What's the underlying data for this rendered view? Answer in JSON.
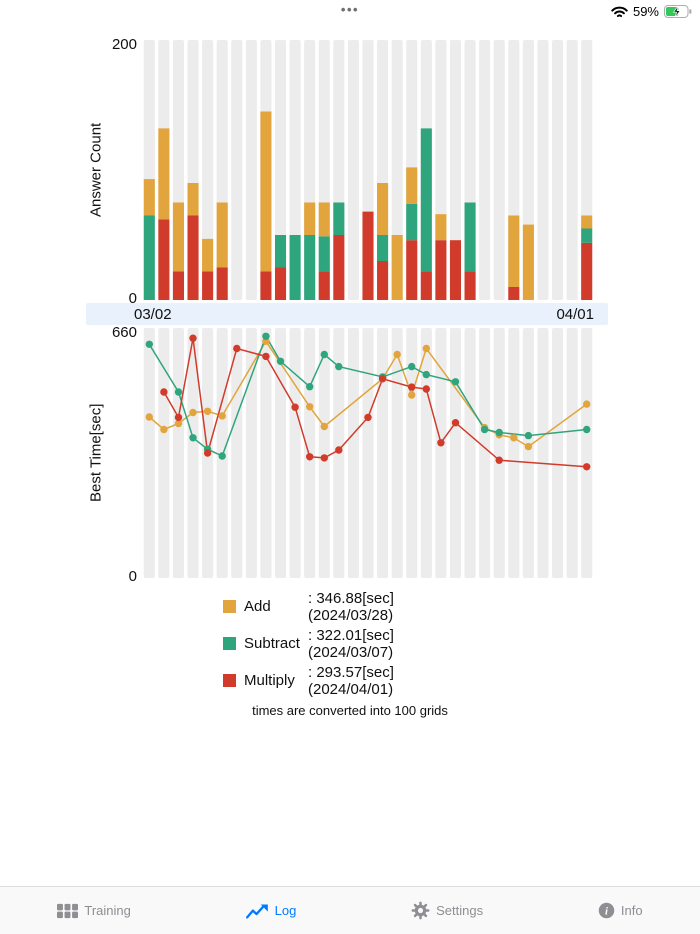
{
  "status_bar": {
    "window_controls": "•••",
    "battery_percent": "59%",
    "icons": [
      "wifi-icon",
      "battery-charging-icon"
    ]
  },
  "date_axis": {
    "start_label": "03/02",
    "end_label": "04/01"
  },
  "theme": {
    "add_color": "#E2A43C",
    "subtract_color": "#2FA57D",
    "multiply_color": "#D13B2B",
    "stripe_color": "#ECECEC",
    "date_strip_bg": "#E8F1FC",
    "active_tab_color": "#007AFF",
    "inactive_tab_color": "#8E8E93",
    "battery_fill": "#34C759"
  },
  "chart_data": [
    {
      "type": "stacked_bar",
      "ylabel": "Answer Count",
      "ylim": [
        0,
        200
      ],
      "ytick_labels": [
        "0",
        "200"
      ],
      "x_start_label": "03/02",
      "x_end_label": "04/01",
      "grid": "vertical-stripes",
      "stack_bottom_to_top": [
        "Multiply",
        "Subtract",
        "Add"
      ],
      "dates": [
        "03/02",
        "03/03",
        "03/04",
        "03/05",
        "03/06",
        "03/07",
        "03/08",
        "03/09",
        "03/10",
        "03/11",
        "03/12",
        "03/13",
        "03/14",
        "03/15",
        "03/16",
        "03/17",
        "03/18",
        "03/19",
        "03/20",
        "03/21",
        "03/22",
        "03/23",
        "03/24",
        "03/25",
        "03/26",
        "03/27",
        "03/28",
        "03/29",
        "03/30",
        "03/31",
        "04/01"
      ],
      "series": [
        {
          "name": "Multiply",
          "color": "#D13B2B",
          "values": [
            0,
            62,
            22,
            65,
            22,
            25,
            0,
            0,
            22,
            25,
            0,
            0,
            22,
            50,
            0,
            68,
            30,
            0,
            46,
            22,
            46,
            46,
            22,
            0,
            0,
            10,
            0,
            0,
            0,
            0,
            44
          ]
        },
        {
          "name": "Subtract",
          "color": "#2FA57D",
          "values": [
            65,
            0,
            0,
            0,
            0,
            0,
            0,
            0,
            0,
            25,
            50,
            50,
            27,
            25,
            0,
            0,
            20,
            0,
            28,
            110,
            0,
            0,
            53,
            0,
            0,
            0,
            0,
            0,
            0,
            0,
            11
          ]
        },
        {
          "name": "Add",
          "color": "#E2A43C",
          "values": [
            28,
            70,
            53,
            25,
            25,
            50,
            0,
            0,
            123,
            0,
            0,
            25,
            26,
            0,
            0,
            0,
            40,
            50,
            28,
            0,
            20,
            0,
            0,
            0,
            0,
            55,
            58,
            0,
            0,
            0,
            10
          ]
        }
      ]
    },
    {
      "type": "line",
      "ylabel": "Best Time[sec]",
      "ylim": [
        0,
        660
      ],
      "ytick_labels": [
        "0",
        "660"
      ],
      "grid": "vertical-stripes",
      "dates": [
        "03/02",
        "03/03",
        "03/04",
        "03/05",
        "03/06",
        "03/07",
        "03/08",
        "03/09",
        "03/10",
        "03/11",
        "03/12",
        "03/13",
        "03/14",
        "03/15",
        "03/16",
        "03/17",
        "03/18",
        "03/19",
        "03/20",
        "03/21",
        "03/22",
        "03/23",
        "03/24",
        "03/25",
        "03/26",
        "03/27",
        "03/28",
        "03/29",
        "03/30",
        "03/31",
        "04/01"
      ],
      "series": [
        {
          "name": "Add",
          "color": "#E2A43C",
          "points": [
            [
              "03/02",
              425
            ],
            [
              "03/03",
              392
            ],
            [
              "03/04",
              408
            ],
            [
              "03/05",
              437
            ],
            [
              "03/06",
              440
            ],
            [
              "03/07",
              428
            ],
            [
              "03/10",
              625
            ],
            [
              "03/13",
              452
            ],
            [
              "03/14",
              400
            ],
            [
              "03/18",
              526
            ],
            [
              "03/19",
              590
            ],
            [
              "03/20",
              483
            ],
            [
              "03/21",
              606
            ],
            [
              "03/25",
              397
            ],
            [
              "03/26",
              378
            ],
            [
              "03/27",
              370
            ],
            [
              "03/28",
              346.88
            ],
            [
              "04/01",
              459
            ]
          ]
        },
        {
          "name": "Subtract",
          "color": "#2FA57D",
          "points": [
            [
              "03/02",
              617
            ],
            [
              "03/04",
              491
            ],
            [
              "03/05",
              370
            ],
            [
              "03/06",
              340
            ],
            [
              "03/07",
              322.01
            ],
            [
              "03/10",
              638
            ],
            [
              "03/11",
              572
            ],
            [
              "03/13",
              505
            ],
            [
              "03/14",
              590
            ],
            [
              "03/15",
              558
            ],
            [
              "03/18",
              531
            ],
            [
              "03/20",
              558
            ],
            [
              "03/21",
              537
            ],
            [
              "03/23",
              518
            ],
            [
              "03/25",
              392
            ],
            [
              "03/26",
              384
            ],
            [
              "03/28",
              376
            ],
            [
              "04/01",
              392
            ]
          ]
        },
        {
          "name": "Multiply",
          "color": "#D13B2B",
          "points": [
            [
              "03/03",
              491
            ],
            [
              "03/04",
              424
            ],
            [
              "03/05",
              633
            ],
            [
              "03/06",
              330
            ],
            [
              "03/08",
              606
            ],
            [
              "03/10",
              585
            ],
            [
              "03/12",
              451
            ],
            [
              "03/13",
              320
            ],
            [
              "03/14",
              317
            ],
            [
              "03/15",
              338
            ],
            [
              "03/17",
              424
            ],
            [
              "03/18",
              526
            ],
            [
              "03/20",
              504
            ],
            [
              "03/21",
              499
            ],
            [
              "03/22",
              357
            ],
            [
              "03/23",
              410
            ],
            [
              "03/26",
              311
            ],
            [
              "04/01",
              293.57
            ]
          ]
        }
      ]
    }
  ],
  "legend": {
    "items": [
      {
        "name": "Add",
        "color": "#E2A43C",
        "best_time_sec": 346.88,
        "best_date": "2024/03/28",
        "display": ": 346.88[sec] (2024/03/28)"
      },
      {
        "name": "Subtract",
        "color": "#2FA57D",
        "best_time_sec": 322.01,
        "best_date": "2024/03/07",
        "display": ": 322.01[sec] (2024/03/07)"
      },
      {
        "name": "Multiply",
        "color": "#D13B2B",
        "best_time_sec": 293.57,
        "best_date": "2024/04/01",
        "display": ": 293.57[sec] (2024/04/01)"
      }
    ],
    "note": "times are converted into 100 grids"
  },
  "tab_bar": {
    "items": [
      {
        "label": "Training",
        "icon": "grid-icon",
        "active": false
      },
      {
        "label": "Log",
        "icon": "line-chart-icon",
        "active": true
      },
      {
        "label": "Settings",
        "icon": "gear-icon",
        "active": false
      },
      {
        "label": "Info",
        "icon": "info-icon",
        "active": false
      }
    ]
  }
}
